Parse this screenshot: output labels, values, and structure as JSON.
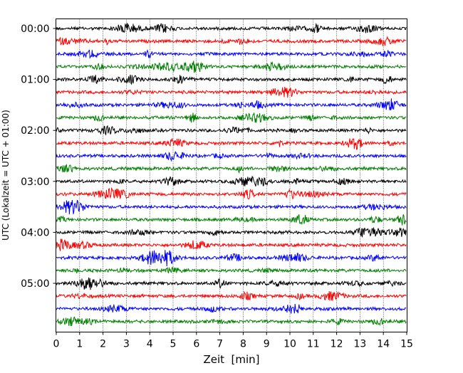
{
  "chart_data": {
    "type": "line",
    "title": "",
    "xlabel": "Zeit  [min]",
    "ylabel": "UTC (Lokalzeit = UTC + 01:00)",
    "xlim": [
      0,
      15
    ],
    "x_ticks": [
      "0",
      "1",
      "2",
      "3",
      "4",
      "5",
      "6",
      "7",
      "8",
      "9",
      "10",
      "11",
      "12",
      "13",
      "14",
      "15"
    ],
    "y_ticks": [
      "00:00",
      "01:00",
      "02:00",
      "03:00",
      "04:00",
      "05:00"
    ],
    "grid": "vertical dotted lines at each minute",
    "trace_count": 24,
    "trace_interval_minutes": 15,
    "trace_colors": [
      "#000000",
      "#ff0000",
      "#0000ff",
      "#008000"
    ]
  }
}
